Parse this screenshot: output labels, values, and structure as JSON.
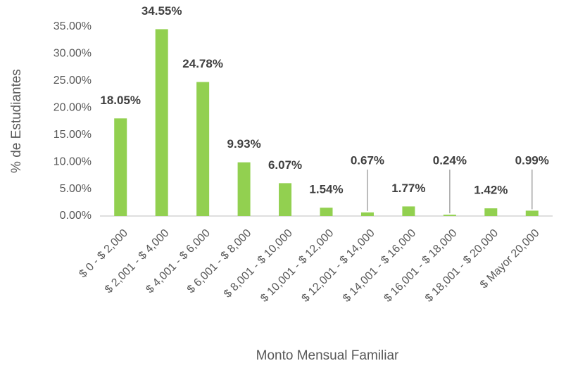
{
  "chart_data": {
    "type": "bar",
    "x_label": "Monto Mensual Familiar",
    "y_label": "% de Estudiantes",
    "categories": [
      "$ 0 - $ 2,000",
      "$ 2,001 - $ 4,000",
      "$ 4,001 - $ 6,000",
      "$ 6,001 - $ 8,000",
      "$ 8,001 - $ 10,000",
      "$ 10,001 - $ 12,000",
      "$ 12,001 - $ 14,000",
      "$ 14,001 - $ 16,000",
      "$ 16,001 - $ 18,000",
      "$ 18,001 - $ 20,000",
      "$ Mayor 20,000"
    ],
    "values": [
      18.05,
      34.55,
      24.78,
      9.93,
      6.07,
      1.54,
      0.67,
      1.77,
      0.24,
      1.42,
      0.99
    ],
    "value_labels": [
      "18.05%",
      "34.55%",
      "24.78%",
      "9.93%",
      "6.07%",
      "1.54%",
      "0.67%",
      "1.77%",
      "0.24%",
      "1.42%",
      "0.99%"
    ],
    "color": "#92d050",
    "ylim": [
      0,
      35
    ],
    "yticks": [
      {
        "value": 0,
        "label": "0.00%"
      },
      {
        "value": 5,
        "label": "5.00%"
      },
      {
        "value": 10,
        "label": "10.00%"
      },
      {
        "value": 15,
        "label": "15.00%"
      },
      {
        "value": 20,
        "label": "20.00%"
      },
      {
        "value": 25,
        "label": "25.00%"
      },
      {
        "value": 30,
        "label": "30.00%"
      },
      {
        "value": 35,
        "label": "35.00%"
      }
    ],
    "grid": false
  }
}
